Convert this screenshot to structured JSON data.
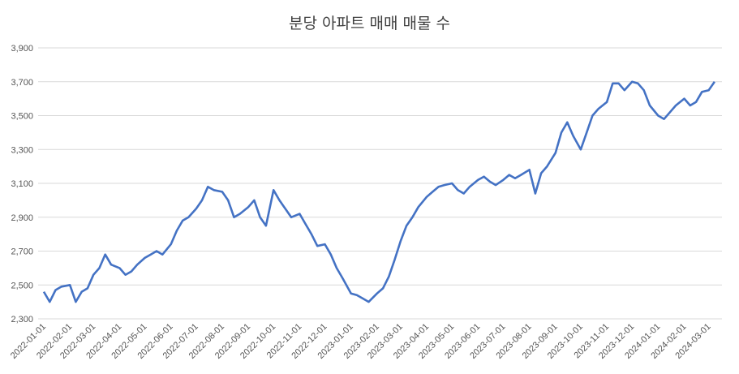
{
  "chart_data": {
    "type": "line",
    "title": "분당 아파트 매매 매물 수",
    "xlabel": "",
    "ylabel": "",
    "ylim": [
      2300,
      3900
    ],
    "yticks": [
      2300,
      2500,
      2700,
      2900,
      3100,
      3300,
      3500,
      3700,
      3900
    ],
    "ytick_labels": [
      "2,300",
      "2,500",
      "2,700",
      "2,900",
      "3,100",
      "3,300",
      "3,500",
      "3,700",
      "3,900"
    ],
    "xticks": [
      "2022-01-01",
      "2022-02-01",
      "2022-03-01",
      "2022-04-01",
      "2022-05-01",
      "2022-06-01",
      "2022-07-01",
      "2022-08-01",
      "2022-09-01",
      "2022-10-01",
      "2022-11-01",
      "2022-12-01",
      "2023-01-01",
      "2023-02-01",
      "2023-03-01",
      "2023-04-01",
      "2023-05-01",
      "2023-06-01",
      "2023-07-01",
      "2023-08-01",
      "2023-09-01",
      "2023-10-01",
      "2023-11-01",
      "2023-12-01",
      "2024-01-01",
      "2024-02-01",
      "2024-03-01"
    ],
    "grid": true,
    "legend": "none",
    "line_color": "#4472C4",
    "series": [
      {
        "x": [
          "2022-01-01",
          "2022-01-08",
          "2022-01-15",
          "2022-01-22",
          "2022-02-01",
          "2022-02-08",
          "2022-02-15",
          "2022-02-22",
          "2022-03-01",
          "2022-03-08",
          "2022-03-15",
          "2022-03-22",
          "2022-04-01",
          "2022-04-08",
          "2022-04-15",
          "2022-04-22",
          "2022-05-01",
          "2022-05-08",
          "2022-05-15",
          "2022-05-22",
          "2022-06-01",
          "2022-06-08",
          "2022-06-15",
          "2022-06-22",
          "2022-07-01",
          "2022-07-08",
          "2022-07-15",
          "2022-07-22",
          "2022-08-01",
          "2022-08-08",
          "2022-08-15",
          "2022-08-22",
          "2022-09-01",
          "2022-09-08",
          "2022-09-15",
          "2022-09-22",
          "2022-10-01",
          "2022-10-08",
          "2022-10-15",
          "2022-10-22",
          "2022-11-01",
          "2022-11-08",
          "2022-11-15",
          "2022-11-22",
          "2022-12-01",
          "2022-12-08",
          "2022-12-15",
          "2022-12-22",
          "2023-01-01",
          "2023-01-08",
          "2023-01-15",
          "2023-01-22",
          "2023-02-01",
          "2023-02-08",
          "2023-02-15",
          "2023-02-22",
          "2023-03-01",
          "2023-03-08",
          "2023-03-15",
          "2023-03-22",
          "2023-04-01",
          "2023-04-08",
          "2023-04-15",
          "2023-04-22",
          "2023-05-01",
          "2023-05-08",
          "2023-05-15",
          "2023-05-22",
          "2023-06-01",
          "2023-06-08",
          "2023-06-15",
          "2023-06-22",
          "2023-07-01",
          "2023-07-08",
          "2023-07-15",
          "2023-07-22",
          "2023-08-01",
          "2023-08-08",
          "2023-08-15",
          "2023-08-22",
          "2023-09-01",
          "2023-09-08",
          "2023-09-15",
          "2023-09-22",
          "2023-10-01",
          "2023-10-08",
          "2023-10-15",
          "2023-10-22",
          "2023-11-01",
          "2023-11-08",
          "2023-11-15",
          "2023-11-22",
          "2023-12-01",
          "2023-12-08",
          "2023-12-15",
          "2023-12-22",
          "2024-01-01",
          "2024-01-08",
          "2024-01-15",
          "2024-01-22",
          "2024-02-01",
          "2024-02-08",
          "2024-02-15",
          "2024-02-22",
          "2024-03-01",
          "2024-03-08"
        ],
        "values": [
          2460,
          2400,
          2470,
          2490,
          2500,
          2400,
          2460,
          2480,
          2560,
          2600,
          2680,
          2620,
          2600,
          2560,
          2580,
          2620,
          2660,
          2680,
          2700,
          2680,
          2740,
          2820,
          2880,
          2900,
          2950,
          3000,
          3080,
          3060,
          3050,
          3000,
          2900,
          2920,
          2960,
          3000,
          2900,
          2850,
          3060,
          3000,
          2950,
          2900,
          2920,
          2860,
          2800,
          2730,
          2740,
          2680,
          2600,
          2540,
          2450,
          2440,
          2420,
          2400,
          2450,
          2480,
          2550,
          2650,
          2760,
          2850,
          2900,
          2960,
          3020,
          3050,
          3080,
          3090,
          3100,
          3060,
          3040,
          3080,
          3120,
          3140,
          3110,
          3090,
          3120,
          3150,
          3130,
          3150,
          3180,
          3040,
          3160,
          3200,
          3280,
          3400,
          3460,
          3380,
          3300,
          3400,
          3500,
          3540,
          3580,
          3690,
          3690,
          3650,
          3700,
          3690,
          3650,
          3560,
          3500,
          3480,
          3520,
          3560,
          3600,
          3560,
          3580,
          3640,
          3650,
          3700
        ]
      }
    ]
  }
}
